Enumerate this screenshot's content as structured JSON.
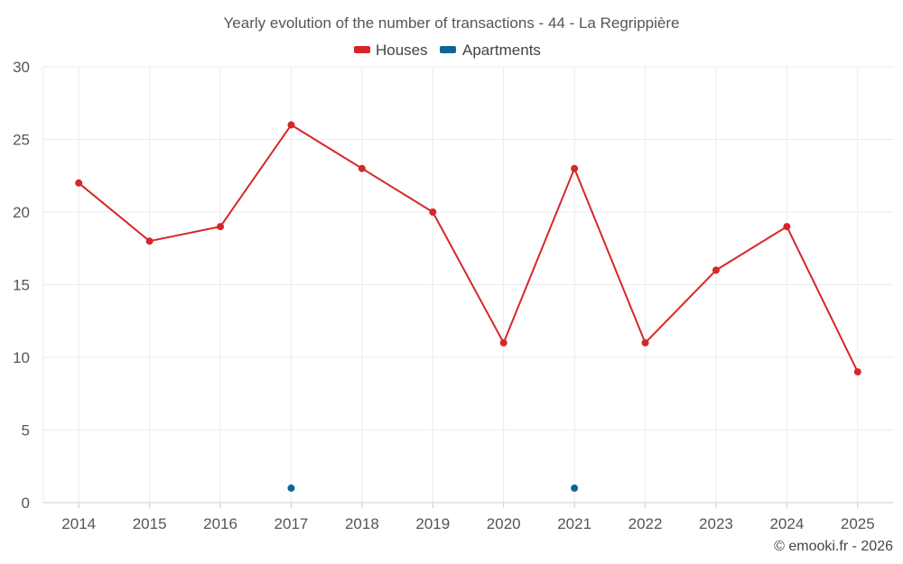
{
  "chart_data": {
    "type": "line",
    "title": "Yearly evolution of the number of transactions - 44 - La Regrippière",
    "categories": [
      "2014",
      "2015",
      "2016",
      "2017",
      "2018",
      "2019",
      "2020",
      "2021",
      "2022",
      "2023",
      "2024",
      "2025"
    ],
    "series": [
      {
        "name": "Houses",
        "color": "#d62728",
        "values": [
          22,
          18,
          19,
          26,
          23,
          20,
          11,
          23,
          11,
          16,
          19,
          9
        ]
      },
      {
        "name": "Apartments",
        "color": "#0a6796",
        "values": [
          null,
          null,
          null,
          1,
          null,
          null,
          null,
          1,
          null,
          null,
          null,
          null
        ]
      }
    ],
    "ylim": [
      0,
      30
    ],
    "yticks": [
      "0",
      "5",
      "10",
      "15",
      "20",
      "25",
      "30"
    ],
    "grid": true,
    "legend_position": "top-center"
  },
  "credit": "© emooki.fr - 2026"
}
